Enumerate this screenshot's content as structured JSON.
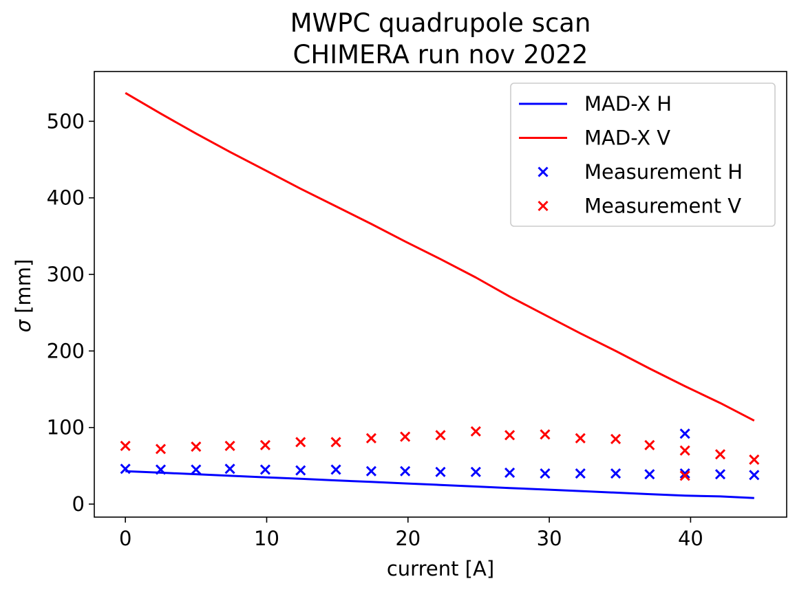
{
  "chart_data": {
    "type": "line+scatter",
    "title_lines": [
      "MWPC quadrupole scan",
      "CHIMERA run nov 2022"
    ],
    "xlabel": "current [A]",
    "ylabel_symbol": "σ",
    "ylabel_unit": " [mm]",
    "xlim": [
      -2.2,
      46.8
    ],
    "ylim": [
      -17,
      565
    ],
    "xticks": [
      0,
      10,
      20,
      30,
      40
    ],
    "yticks": [
      0,
      100,
      200,
      300,
      400,
      500
    ],
    "grid": false,
    "legend_position": "upper right",
    "series": [
      {
        "name": "MAD-X H",
        "kind": "line",
        "color": "#0000ff",
        "x": [
          0,
          2.5,
          5,
          7.4,
          9.9,
          12.4,
          14.9,
          17.4,
          19.8,
          22.3,
          24.8,
          27.2,
          29.7,
          32.2,
          34.7,
          37.1,
          39.6,
          42.1,
          44.5
        ],
        "y": [
          43,
          41,
          39,
          37,
          35,
          33,
          31,
          29,
          27,
          25,
          23,
          21,
          19,
          17,
          15,
          13,
          11,
          10,
          8
        ]
      },
      {
        "name": "MAD-X V",
        "kind": "line",
        "color": "#ff0000",
        "x": [
          0,
          2.5,
          5,
          7.4,
          9.9,
          12.4,
          14.9,
          17.4,
          19.8,
          22.3,
          24.8,
          27.2,
          29.7,
          32.2,
          34.7,
          37.1,
          39.6,
          42.1,
          44.5
        ],
        "y": [
          537,
          510,
          484,
          460,
          436,
          412,
          389,
          366,
          343,
          320,
          296,
          271,
          247,
          223,
          200,
          177,
          154,
          132,
          109
        ]
      },
      {
        "name": "Measurement H",
        "kind": "scatter",
        "marker": "x",
        "color": "#0000ff",
        "x": [
          0,
          2.5,
          5,
          7.4,
          9.9,
          12.4,
          14.9,
          17.4,
          19.8,
          22.3,
          24.8,
          27.2,
          29.7,
          32.2,
          34.7,
          37.1,
          39.6,
          39.6,
          42.1,
          44.5
        ],
        "y": [
          46,
          45,
          45,
          46,
          45,
          44,
          45,
          43,
          43,
          42,
          42,
          41,
          40,
          40,
          40,
          39,
          92,
          40,
          39,
          38
        ]
      },
      {
        "name": "Measurement V",
        "kind": "scatter",
        "marker": "x",
        "color": "#ff0000",
        "x": [
          0,
          2.5,
          5,
          7.4,
          9.9,
          12.4,
          14.9,
          17.4,
          19.8,
          22.3,
          24.8,
          27.2,
          29.7,
          32.2,
          34.7,
          37.1,
          39.6,
          39.6,
          42.1,
          44.5
        ],
        "y": [
          76,
          72,
          75,
          76,
          77,
          81,
          81,
          86,
          88,
          90,
          95,
          90,
          91,
          86,
          85,
          77,
          70,
          37,
          65,
          58
        ]
      }
    ]
  }
}
